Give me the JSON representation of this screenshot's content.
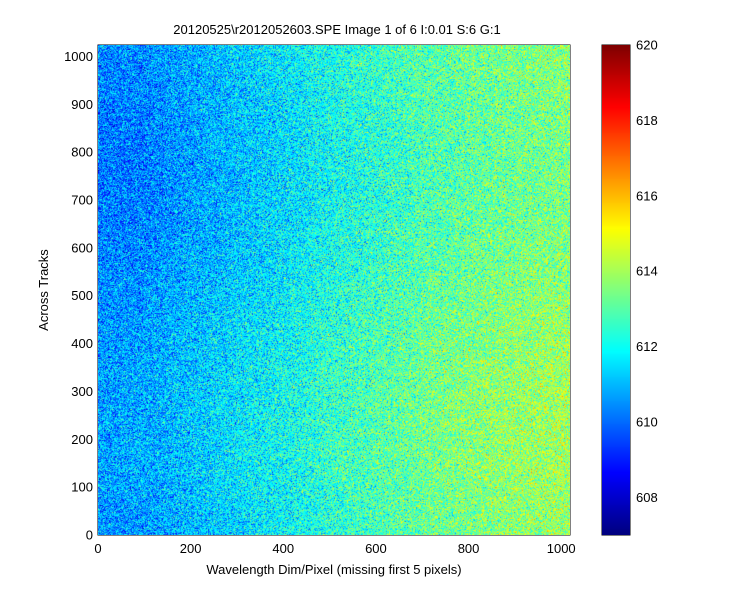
{
  "chart_data": {
    "type": "heatmap",
    "title": "20120525\\r2012052603.SPE  Image 1 of 6  I:0.01  S:6  G:1",
    "xlabel": "Wavelength Dim/Pixel (missing first 5 pixels)",
    "ylabel": "Across Tracks",
    "xlim": [
      0,
      1019
    ],
    "ylim": [
      0,
      1024
    ],
    "x_ticks": [
      0,
      200,
      400,
      600,
      800,
      1000
    ],
    "y_ticks": [
      0,
      100,
      200,
      300,
      400,
      500,
      600,
      700,
      800,
      900,
      1000
    ],
    "colormap": "jet",
    "color_range": [
      607,
      620
    ],
    "colorbar_ticks": [
      608,
      610,
      612,
      614,
      616,
      618,
      620
    ],
    "value_trend": {
      "description_axis": "x",
      "x": [
        0,
        100,
        200,
        300,
        400,
        500,
        600,
        700,
        800,
        900,
        1019
      ],
      "mean_value": [
        610.5,
        610.6,
        611.0,
        611.4,
        611.8,
        612.3,
        612.7,
        613.1,
        613.4,
        613.6,
        613.8
      ]
    },
    "noise_spread": 1.4,
    "grid": false
  }
}
